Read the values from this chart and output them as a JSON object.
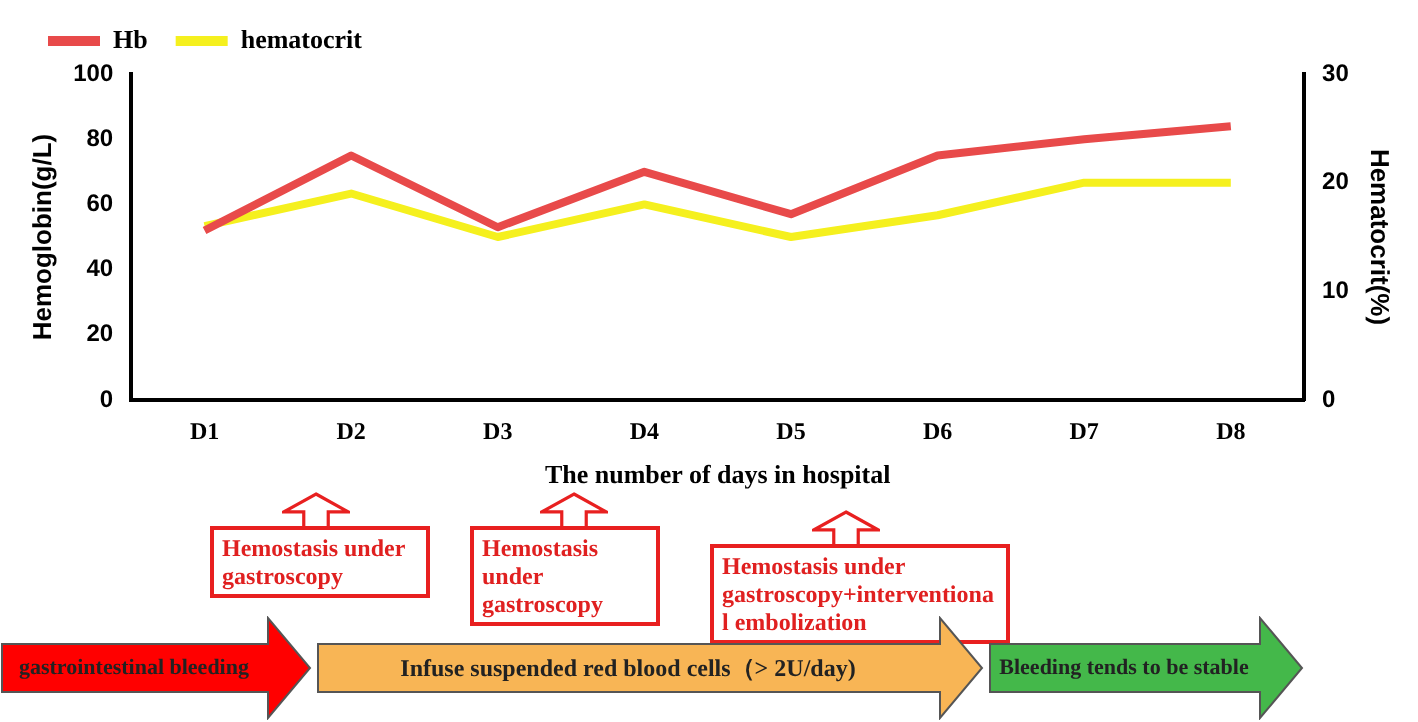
{
  "chart_data": {
    "type": "line",
    "categories": [
      "D1",
      "D2",
      "D3",
      "D4",
      "D5",
      "D6",
      "D7",
      "D8"
    ],
    "series": [
      {
        "name": "Hb",
        "color": "#e84a4a",
        "values": [
          52,
          75,
          53,
          70,
          57,
          75,
          80,
          84
        ]
      },
      {
        "name": "hematocrit",
        "color": "#f5f01e",
        "axis": "y2",
        "values": [
          16,
          19,
          15,
          18,
          15,
          17,
          20,
          20
        ]
      }
    ],
    "xlabel": "The number of days in hospital",
    "ylabel": "Hemoglobin(g/L)",
    "y2label": "Hematocrit(%)",
    "ylim": [
      0,
      100
    ],
    "yticks": [
      0,
      20,
      40,
      60,
      80,
      100
    ],
    "y2lim": [
      0,
      30
    ],
    "y2ticks": [
      0,
      10,
      20,
      30
    ],
    "grid": false,
    "legend": "top left",
    "marker": "none",
    "line_style": "solid",
    "annotations": [
      "Hemostasis under gastroscopy",
      "Hemostasis under gastroscopy",
      "Hemostasis under gastroscopy+interventional embolization",
      "gastrointestinal bleeding",
      "Infuse suspended red blood cells（> 2U/day)",
      "Bleeding tends to be stable"
    ]
  }
}
